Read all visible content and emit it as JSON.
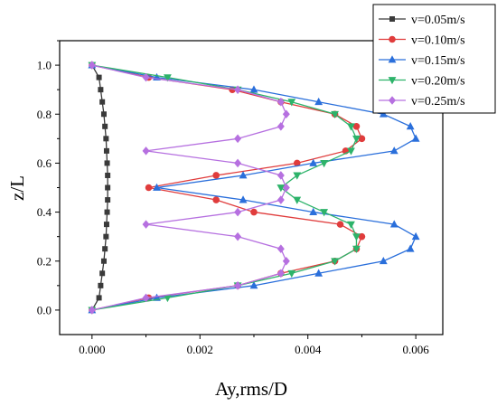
{
  "chart_data": {
    "type": "line",
    "title": "",
    "xlabel": "Ay,rms/D",
    "ylabel": "z/L",
    "xlim": [
      -0.0006,
      0.0065
    ],
    "ylim": [
      -0.1,
      1.1
    ],
    "x_ticks": [
      "0.000",
      "0.002",
      "0.004",
      "0.006"
    ],
    "x_tick_values": [
      0,
      0.002,
      0.004,
      0.006
    ],
    "y_ticks": [
      "0.0",
      "0.2",
      "0.4",
      "0.6",
      "0.8",
      "1.0"
    ],
    "y_tick_values": [
      0,
      0.2,
      0.4,
      0.6,
      0.8,
      1.0
    ],
    "legend_position": "top-right",
    "grid": false,
    "series": [
      {
        "name": "v=0.05m/s",
        "color": "#3a3a3a",
        "marker": "square",
        "points": [
          [
            0.0,
            0.0
          ],
          [
            0.00013,
            0.05
          ],
          [
            0.00016,
            0.1
          ],
          [
            0.00019,
            0.15
          ],
          [
            0.00022,
            0.2
          ],
          [
            0.00024,
            0.25
          ],
          [
            0.00026,
            0.3
          ],
          [
            0.00027,
            0.35
          ],
          [
            0.00028,
            0.4
          ],
          [
            0.00029,
            0.45
          ],
          [
            0.00029,
            0.5
          ],
          [
            0.00029,
            0.55
          ],
          [
            0.00028,
            0.6
          ],
          [
            0.00027,
            0.65
          ],
          [
            0.00026,
            0.7
          ],
          [
            0.00024,
            0.75
          ],
          [
            0.00022,
            0.8
          ],
          [
            0.00019,
            0.85
          ],
          [
            0.00016,
            0.9
          ],
          [
            0.00013,
            0.95
          ],
          [
            0.0,
            1.0
          ]
        ]
      },
      {
        "name": "v=0.10m/s",
        "color": "#e03c3c",
        "marker": "circle",
        "points": [
          [
            0.0,
            0.0
          ],
          [
            0.00105,
            0.05
          ],
          [
            0.0027,
            0.1
          ],
          [
            0.0035,
            0.15
          ],
          [
            0.0045,
            0.2
          ],
          [
            0.0049,
            0.25
          ],
          [
            0.005,
            0.3
          ],
          [
            0.0046,
            0.35
          ],
          [
            0.003,
            0.4
          ],
          [
            0.0023,
            0.45
          ],
          [
            0.00105,
            0.5
          ],
          [
            0.0023,
            0.55
          ],
          [
            0.0038,
            0.6
          ],
          [
            0.0047,
            0.65
          ],
          [
            0.005,
            0.7
          ],
          [
            0.0049,
            0.75
          ],
          [
            0.0045,
            0.8
          ],
          [
            0.0035,
            0.85
          ],
          [
            0.0026,
            0.9
          ],
          [
            0.00105,
            0.95
          ],
          [
            0.0,
            1.0
          ]
        ]
      },
      {
        "name": "v=0.15m/s",
        "color": "#2a6fdb",
        "marker": "triangle-up",
        "points": [
          [
            0.0,
            0.0
          ],
          [
            0.0012,
            0.05
          ],
          [
            0.003,
            0.1
          ],
          [
            0.0042,
            0.15
          ],
          [
            0.0054,
            0.2
          ],
          [
            0.0059,
            0.25
          ],
          [
            0.006,
            0.3
          ],
          [
            0.0056,
            0.35
          ],
          [
            0.0041,
            0.4
          ],
          [
            0.0028,
            0.45
          ],
          [
            0.0012,
            0.5
          ],
          [
            0.0028,
            0.55
          ],
          [
            0.0041,
            0.6
          ],
          [
            0.0056,
            0.65
          ],
          [
            0.006,
            0.7
          ],
          [
            0.0059,
            0.75
          ],
          [
            0.0054,
            0.8
          ],
          [
            0.0042,
            0.85
          ],
          [
            0.003,
            0.9
          ],
          [
            0.0012,
            0.95
          ],
          [
            0.0,
            1.0
          ]
        ]
      },
      {
        "name": "v=0.20m/s",
        "color": "#2db36a",
        "marker": "triangle-down",
        "points": [
          [
            0.0,
            0.0
          ],
          [
            0.0014,
            0.05
          ],
          [
            0.0027,
            0.1
          ],
          [
            0.0037,
            0.15
          ],
          [
            0.0045,
            0.2
          ],
          [
            0.0049,
            0.25
          ],
          [
            0.0049,
            0.3
          ],
          [
            0.0048,
            0.35
          ],
          [
            0.0043,
            0.4
          ],
          [
            0.0038,
            0.45
          ],
          [
            0.0035,
            0.5
          ],
          [
            0.0038,
            0.55
          ],
          [
            0.0043,
            0.6
          ],
          [
            0.0048,
            0.65
          ],
          [
            0.0049,
            0.7
          ],
          [
            0.0048,
            0.75
          ],
          [
            0.0045,
            0.8
          ],
          [
            0.0037,
            0.85
          ],
          [
            0.0027,
            0.9
          ],
          [
            0.0014,
            0.95
          ],
          [
            0.0,
            1.0
          ]
        ]
      },
      {
        "name": "v=0.25m/s",
        "color": "#b670e0",
        "marker": "diamond",
        "points": [
          [
            0.0,
            0.0
          ],
          [
            0.001,
            0.05
          ],
          [
            0.0027,
            0.1
          ],
          [
            0.0035,
            0.15
          ],
          [
            0.0036,
            0.2
          ],
          [
            0.0035,
            0.25
          ],
          [
            0.0027,
            0.3
          ],
          [
            0.001,
            0.35
          ],
          [
            0.0027,
            0.4
          ],
          [
            0.0035,
            0.45
          ],
          [
            0.0036,
            0.5
          ],
          [
            0.0035,
            0.55
          ],
          [
            0.0027,
            0.6
          ],
          [
            0.001,
            0.65
          ],
          [
            0.0027,
            0.7
          ],
          [
            0.0035,
            0.75
          ],
          [
            0.0036,
            0.8
          ],
          [
            0.0035,
            0.85
          ],
          [
            0.0027,
            0.9
          ],
          [
            0.001,
            0.95
          ],
          [
            0.0,
            1.0
          ]
        ]
      }
    ]
  }
}
